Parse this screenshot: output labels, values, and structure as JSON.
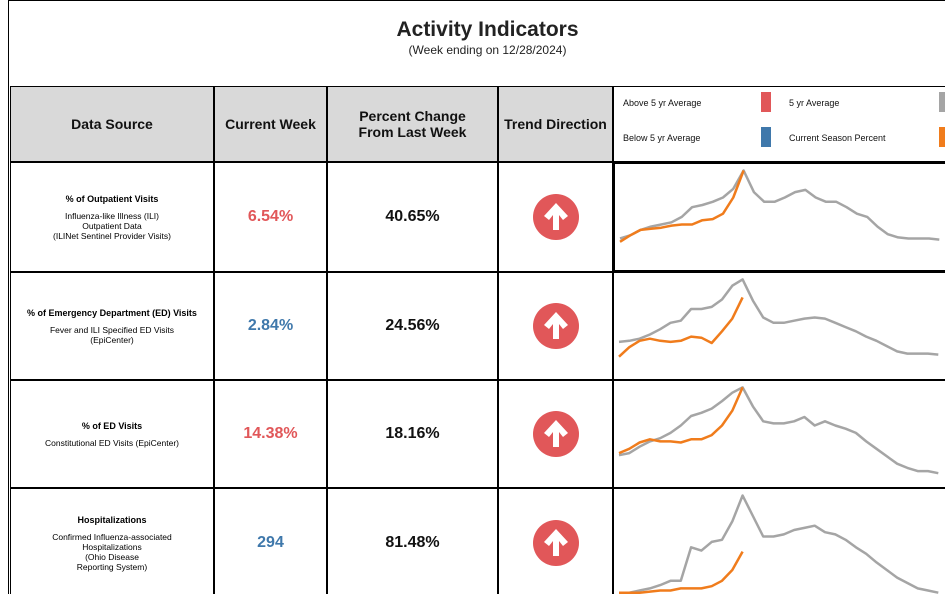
{
  "header": {
    "title": "Activity Indicators",
    "subtitle": "(Week ending on 12/28/2024)"
  },
  "table": {
    "columns": [
      "Data Source",
      "Current Week",
      "Percent Change From Last Week",
      "Trend Direction"
    ],
    "legend": [
      {
        "label": "Above 5 yr Average",
        "color": "#e15759"
      },
      {
        "label": "5 yr Average",
        "color": "#a5a5a5"
      },
      {
        "label": "Below 5 yr Average",
        "color": "#3f78ab"
      },
      {
        "label": "Current Season Percent",
        "color": "#f07c1c"
      }
    ],
    "rows": [
      {
        "title": "% of Outpatient Visits",
        "detail": [
          "Influenza-like Illness (ILI)",
          "Outpatient Data",
          "(ILINet Sentinel Provider Visits)"
        ],
        "current": "6.54%",
        "current_color": "#e15759",
        "change": "40.65%",
        "trend_chart": {
          "ylim": [
            0,
            100
          ],
          "five_year": [
            31,
            34,
            39,
            42,
            44,
            46,
            51,
            60,
            62,
            65,
            69,
            77,
            94,
            74,
            65,
            65,
            69,
            74,
            76,
            69,
            65,
            65,
            60,
            54,
            51,
            42,
            35,
            32,
            31,
            31,
            31,
            30
          ],
          "current": [
            28,
            34,
            39,
            40,
            41,
            43,
            44,
            44,
            48,
            49,
            54,
            69,
            94
          ]
        }
      },
      {
        "title": "% of Emergency Department (ED) Visits",
        "detail": [
          "Fever and ILI Specified ED Visits",
          "(EpiCenter)"
        ],
        "current": "2.84%",
        "current_color": "#3f78ab",
        "change": "24.56%",
        "trend_chart": {
          "ylim": [
            0,
            100
          ],
          "five_year": [
            35,
            36,
            38,
            42,
            47,
            53,
            55,
            66,
            66,
            68,
            75,
            88,
            94,
            74,
            58,
            53,
            53,
            55,
            57,
            58,
            57,
            53,
            49,
            45,
            40,
            36,
            31,
            26,
            24,
            24,
            24,
            23
          ],
          "current": [
            21,
            30,
            36,
            38,
            36,
            35,
            36,
            40,
            39,
            34,
            45,
            57,
            77
          ]
        }
      },
      {
        "title": "% of ED Visits",
        "detail": [
          "Constitutional ED Visits (EpiCenter)"
        ],
        "current": "14.38%",
        "current_color": "#e15759",
        "change": "18.16%",
        "trend_chart": {
          "ylim": [
            0,
            100
          ],
          "five_year": [
            30,
            32,
            38,
            43,
            46,
            51,
            58,
            67,
            70,
            74,
            81,
            89,
            94,
            76,
            62,
            60,
            60,
            62,
            66,
            58,
            62,
            58,
            55,
            51,
            43,
            36,
            29,
            22,
            18,
            15,
            15,
            13
          ],
          "current": [
            32,
            36,
            42,
            45,
            43,
            43,
            42,
            45,
            45,
            49,
            58,
            72,
            94
          ]
        }
      },
      {
        "title": "Hospitalizations",
        "detail": [
          "Confirmed Influenza-associated",
          "Hospitalizations",
          "(Ohio Disease",
          "Reporting System)"
        ],
        "current": "294",
        "current_color": "#3f78ab",
        "change": "81.48%",
        "trend_chart": {
          "ylim": [
            0,
            100
          ],
          "five_year": [
            4,
            4,
            6,
            8,
            11,
            15,
            15,
            46,
            43,
            51,
            53,
            70,
            94,
            75,
            56,
            56,
            58,
            62,
            64,
            66,
            60,
            58,
            53,
            46,
            40,
            32,
            25,
            18,
            13,
            8,
            6,
            4
          ],
          "current": [
            4,
            4,
            4,
            5,
            6,
            6,
            8,
            8,
            8,
            10,
            15,
            25,
            42
          ]
        }
      }
    ]
  }
}
